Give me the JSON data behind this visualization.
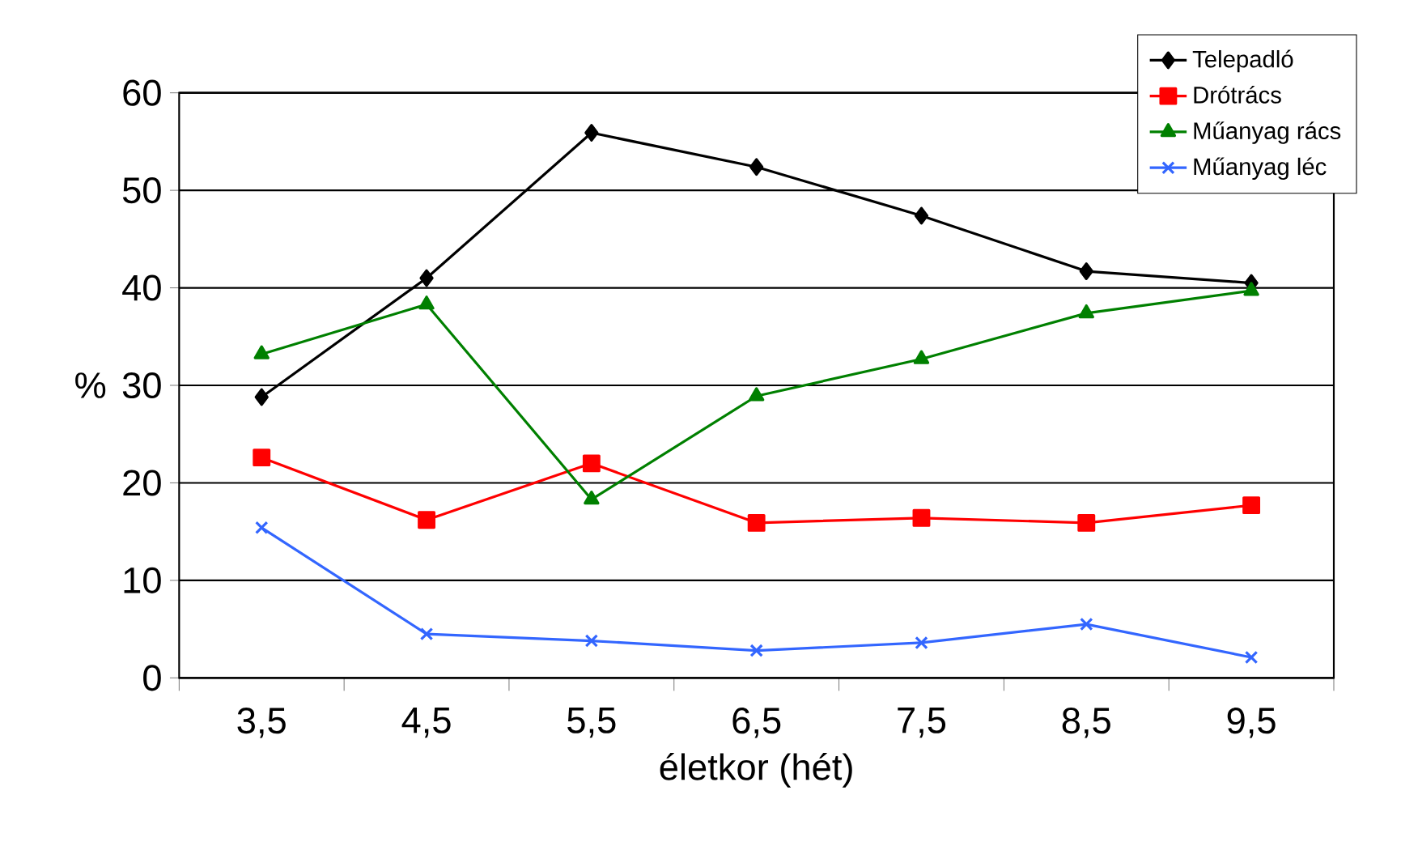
{
  "chart_data": {
    "type": "line",
    "xlabel": "életkor (hét)",
    "ylabel": "%",
    "categories": [
      "3,5",
      "4,5",
      "5,5",
      "6,5",
      "7,5",
      "8,5",
      "9,5"
    ],
    "series": [
      {
        "name": "Telepadló",
        "color": "#000000",
        "marker": "diamond",
        "values": [
          28.8,
          41.0,
          55.9,
          52.4,
          47.4,
          41.7,
          40.5
        ]
      },
      {
        "name": "Drótrács",
        "color": "#ff0000",
        "marker": "square",
        "values": [
          22.6,
          16.2,
          22.0,
          15.9,
          16.4,
          15.9,
          17.7
        ]
      },
      {
        "name": "Műanyag rács",
        "color": "#008000",
        "marker": "triangle",
        "values": [
          33.2,
          38.3,
          18.3,
          28.9,
          32.7,
          37.4,
          39.7
        ]
      },
      {
        "name": "Műanyag léc",
        "color": "#3366ff",
        "marker": "cross",
        "values": [
          15.4,
          4.5,
          3.8,
          2.8,
          3.6,
          5.5,
          2.1
        ]
      }
    ],
    "ylim": [
      0,
      60
    ],
    "yticks": [
      0,
      10,
      20,
      30,
      40,
      50,
      60
    ],
    "grid": "y",
    "legend": "top right",
    "line_style": "solid"
  }
}
